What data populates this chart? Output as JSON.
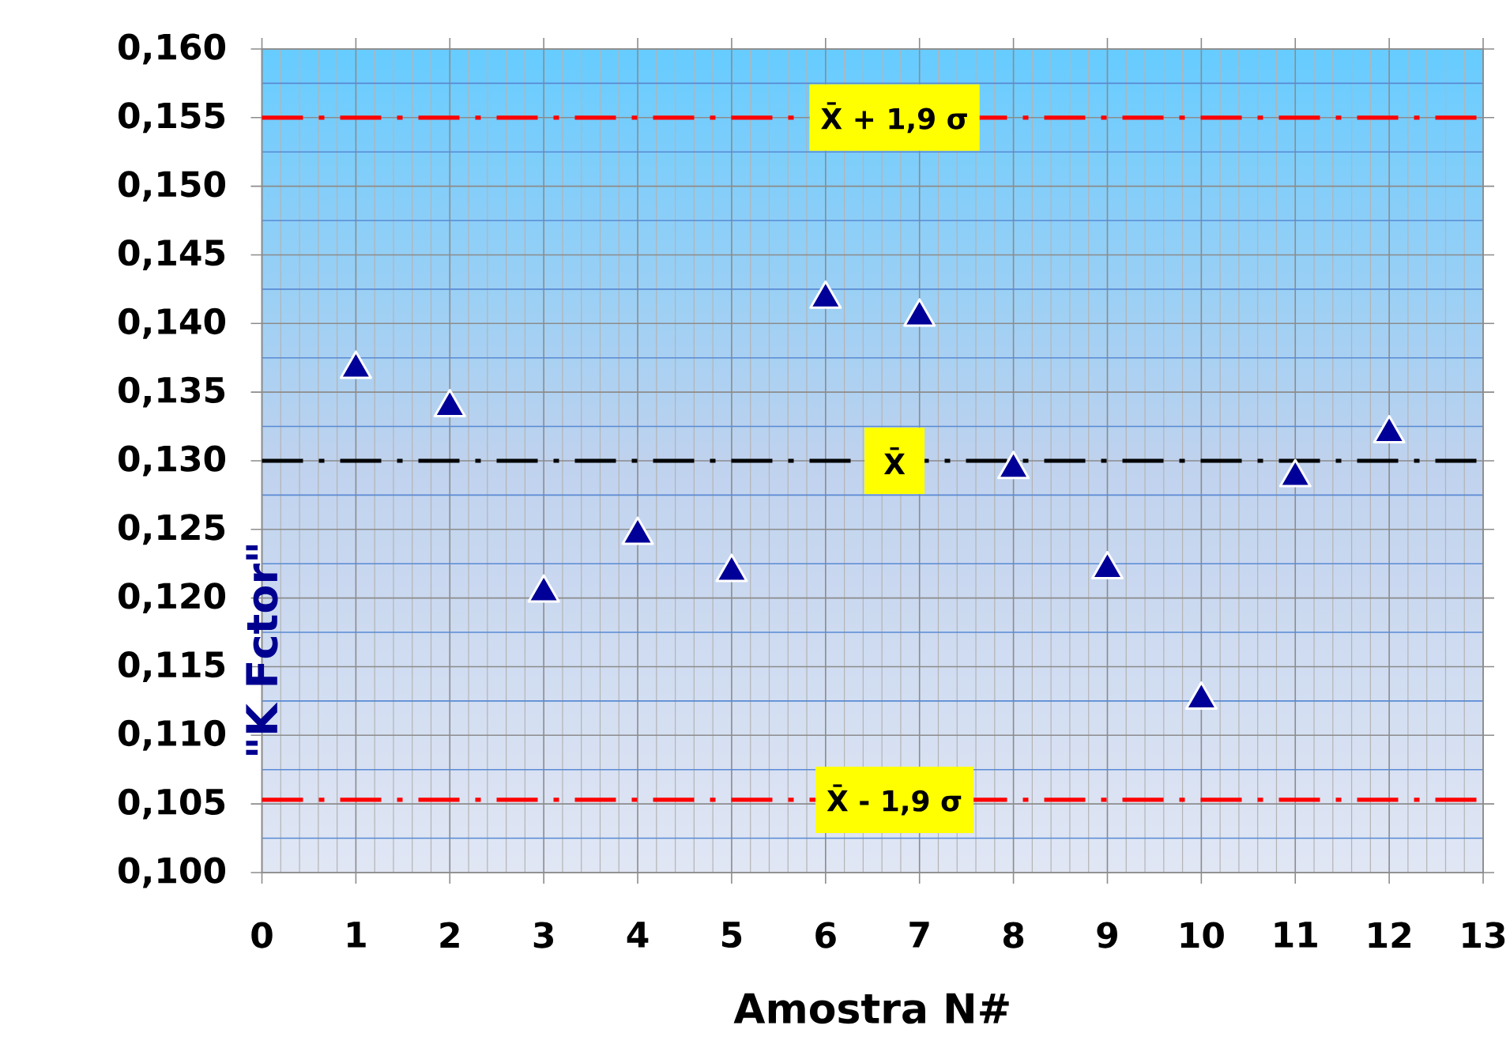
{
  "chart_data": {
    "type": "scatter",
    "xlabel": "Amostra N#",
    "ylabel": "\"K Fctor\"",
    "x": [
      1,
      2,
      3,
      4,
      5,
      6,
      7,
      8,
      9,
      10,
      11,
      12
    ],
    "series": [
      {
        "color": "#000099",
        "values": [
          0.137,
          0.1342,
          0.1207,
          0.1249,
          0.1222,
          0.1421,
          0.1408,
          0.1297,
          0.1224,
          0.1129,
          0.1291,
          0.1323
        ]
      }
    ],
    "marker": "triangle",
    "grid": true,
    "xlim": [
      0,
      13
    ],
    "ylim": [
      0.1,
      0.16
    ],
    "xticks": [
      0,
      1,
      2,
      3,
      4,
      5,
      6,
      7,
      8,
      9,
      10,
      11,
      12,
      13
    ],
    "yticks": [
      {
        "value": 0.1,
        "label": "0,100"
      },
      {
        "value": 0.1025,
        "label": null
      },
      {
        "value": 0.105,
        "label": "0,105"
      },
      {
        "value": 0.1075,
        "label": null
      },
      {
        "value": 0.11,
        "label": "0,110"
      },
      {
        "value": 0.1125,
        "label": null
      },
      {
        "value": 0.115,
        "label": "0,115"
      },
      {
        "value": 0.1175,
        "label": null
      },
      {
        "value": 0.12,
        "label": "0,120"
      },
      {
        "value": 0.1225,
        "label": null
      },
      {
        "value": 0.125,
        "label": "0,125"
      },
      {
        "value": 0.1275,
        "label": null
      },
      {
        "value": 0.13,
        "label": "0,130"
      },
      {
        "value": 0.1325,
        "label": null
      },
      {
        "value": 0.135,
        "label": "0,135"
      },
      {
        "value": 0.1375,
        "label": null
      },
      {
        "value": 0.14,
        "label": "0,140"
      },
      {
        "value": 0.1425,
        "label": null
      },
      {
        "value": 0.145,
        "label": "0,145"
      },
      {
        "value": 0.1475,
        "label": null
      },
      {
        "value": 0.15,
        "label": "0,150"
      },
      {
        "value": 0.1525,
        "label": null
      },
      {
        "value": 0.155,
        "label": "0,155"
      },
      {
        "value": 0.1575,
        "label": null
      },
      {
        "value": 0.16,
        "label": "0,160"
      }
    ],
    "ref_lines": [
      {
        "axis": "y",
        "value": 0.155,
        "label": "X̄ + 1,9 σ",
        "color": "#ff0000",
        "line_style": "dashdot"
      },
      {
        "axis": "y",
        "value": 0.13,
        "label": "X̄",
        "color": "#000000",
        "line_style": "dashdot"
      },
      {
        "axis": "y",
        "value": 0.1053,
        "label": "X̄ - 1,9 σ",
        "color": "#ff0000",
        "line_style": "dashdot"
      }
    ]
  }
}
